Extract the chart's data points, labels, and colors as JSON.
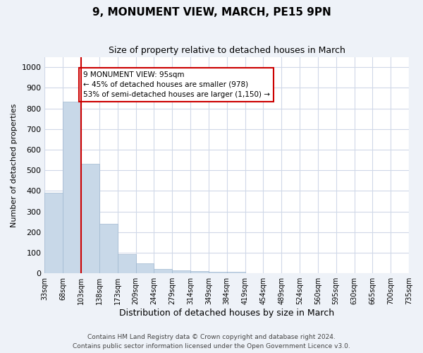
{
  "title": "9, MONUMENT VIEW, MARCH, PE15 9PN",
  "subtitle": "Size of property relative to detached houses in March",
  "xlabel": "Distribution of detached houses by size in March",
  "ylabel": "Number of detached properties",
  "bar_values": [
    390,
    833,
    533,
    240,
    93,
    50,
    20,
    15,
    10,
    8,
    8,
    0,
    0,
    0,
    0,
    0,
    0,
    0,
    0,
    0
  ],
  "bin_labels": [
    "33sqm",
    "68sqm",
    "103sqm",
    "138sqm",
    "173sqm",
    "209sqm",
    "244sqm",
    "279sqm",
    "314sqm",
    "349sqm",
    "384sqm",
    "419sqm",
    "454sqm",
    "489sqm",
    "524sqm",
    "560sqm",
    "595sqm",
    "630sqm",
    "665sqm",
    "700sqm",
    "735sqm"
  ],
  "bar_color": "#c8d8e8",
  "bar_edge_color": "#a0b8d0",
  "grid_color": "#d0d8e8",
  "property_line_x": 2.0,
  "property_line_color": "#cc0000",
  "annotation_text": "9 MONUMENT VIEW: 95sqm\n← 45% of detached houses are smaller (978)\n53% of semi-detached houses are larger (1,150) →",
  "annotation_box_color": "#ffffff",
  "annotation_box_edge": "#cc0000",
  "ylim": [
    0,
    1050
  ],
  "yticks": [
    0,
    100,
    200,
    300,
    400,
    500,
    600,
    700,
    800,
    900,
    1000
  ],
  "footer": "Contains HM Land Registry data © Crown copyright and database right 2024.\nContains public sector information licensed under the Open Government Licence v3.0.",
  "fig_background_color": "#eef2f8",
  "plot_background_color": "#ffffff"
}
